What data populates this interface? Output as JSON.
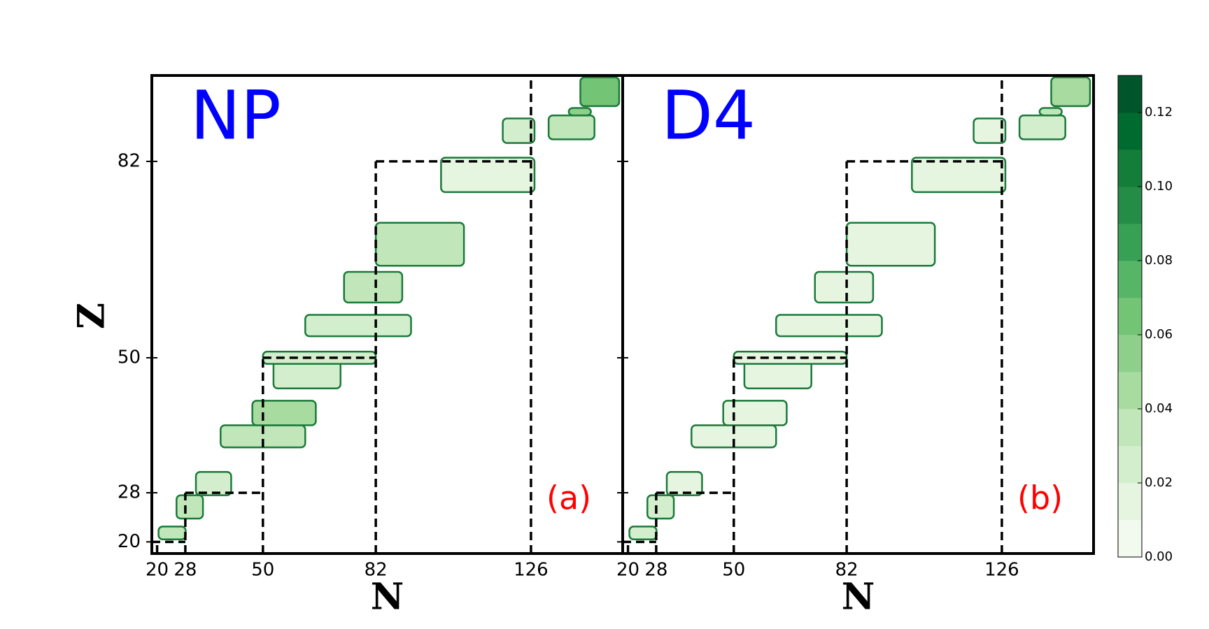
{
  "chart_data": {
    "type": "contour",
    "x_label": "N",
    "y_label": "Z",
    "xlim": [
      18.5,
      152
    ],
    "ylim": [
      18.1,
      96
    ],
    "xticks": [
      20,
      28,
      50,
      82,
      126
    ],
    "yticks": [
      20,
      28,
      50,
      82
    ],
    "magic_lines": [
      [
        18.5,
        20,
        28,
        20
      ],
      [
        20,
        18.1,
        20,
        20
      ],
      [
        28,
        18.1,
        28,
        28
      ],
      [
        28,
        28,
        50,
        28
      ],
      [
        50,
        18.1,
        50,
        50
      ],
      [
        50,
        50,
        82,
        50
      ],
      [
        82,
        18.1,
        82,
        82
      ],
      [
        82,
        82,
        126,
        82
      ],
      [
        126,
        18.1,
        126,
        96
      ]
    ],
    "regions": [
      [
        20.4,
        28.1,
        20.4,
        22.5
      ],
      [
        25.5,
        33,
        23.8,
        27.6
      ],
      [
        31,
        41,
        27.6,
        31.4
      ],
      [
        38,
        62,
        35.4,
        39
      ],
      [
        47,
        65,
        39,
        43
      ],
      [
        53,
        72,
        45,
        49.6
      ],
      [
        50,
        82,
        49,
        51
      ],
      [
        62,
        92,
        53.5,
        57
      ],
      [
        73,
        89.5,
        59,
        64
      ],
      [
        82,
        107,
        65,
        72
      ],
      [
        100.5,
        127,
        77,
        82.6
      ],
      [
        118,
        127,
        85,
        89
      ],
      [
        131,
        144,
        85.6,
        89.5
      ],
      [
        136.7,
        143,
        89.5,
        90.7
      ],
      [
        140,
        151,
        91,
        95.7
      ]
    ],
    "panels": [
      {
        "model": "NP",
        "label": "(a)",
        "values": [
          0.03,
          0.03,
          0.02,
          0.03,
          0.04,
          0.02,
          0.02,
          0.02,
          0.03,
          0.03,
          0.01,
          0.02,
          0.03,
          0.05,
          0.06
        ]
      },
      {
        "model": "D4",
        "label": "(b)",
        "values": [
          0.02,
          0.02,
          0.01,
          0.01,
          0.01,
          0.01,
          0.01,
          0.01,
          0.01,
          0.01,
          0.01,
          0.01,
          0.02,
          0.03,
          0.04
        ]
      }
    ],
    "colorbar": {
      "levels": [
        0,
        0.01,
        0.02,
        0.03,
        0.04,
        0.05,
        0.06,
        0.07,
        0.08,
        0.09,
        0.1,
        0.11,
        0.12,
        0.13
      ],
      "colors": [
        "#f2faf0",
        "#e5f5e0",
        "#d3eecd",
        "#c0e6b9",
        "#a7dba0",
        "#8ed08b",
        "#74c476",
        "#56b567",
        "#37a055",
        "#248c46",
        "#137d39",
        "#006b2e",
        "#00552a"
      ],
      "ticks": [
        {
          "value": 0,
          "label": "0.00"
        },
        {
          "value": 0.02,
          "label": "0.02"
        },
        {
          "value": 0.04,
          "label": "0.04"
        },
        {
          "value": 0.06,
          "label": "0.06"
        },
        {
          "value": 0.08,
          "label": "0.08"
        },
        {
          "value": 0.1,
          "label": "0.10"
        },
        {
          "value": 0.12,
          "label": "0.12"
        }
      ]
    }
  }
}
